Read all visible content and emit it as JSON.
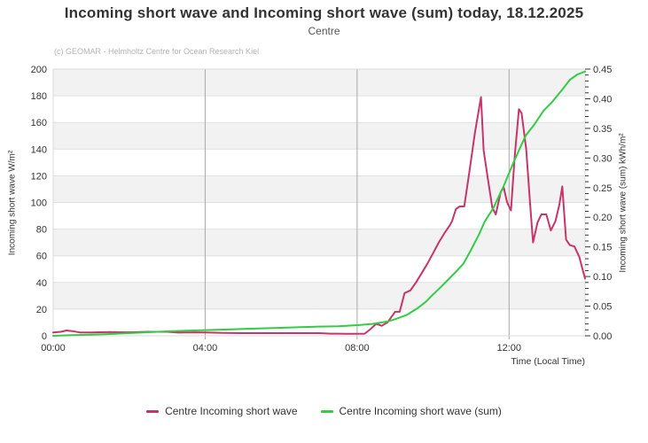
{
  "chart_data": {
    "type": "line",
    "title": "Incoming short wave and Incoming short wave (sum) today, 18.12.2025",
    "subtitle": "Centre",
    "credit": "(c) GEOMAR - Helmholtz Centre for Ocean Research Kiel",
    "x_axis": {
      "label": "Time (Local Time)",
      "range_hours": [
        0,
        14
      ],
      "ticks": [
        {
          "h": 0,
          "label": "00:00"
        },
        {
          "h": 4,
          "label": "04:00"
        },
        {
          "h": 8,
          "label": "08:00"
        },
        {
          "h": 12,
          "label": "12:00"
        }
      ]
    },
    "left_axis": {
      "label": "Incoming short wave W/m²",
      "min": 0,
      "max": 200,
      "tick_step": 20,
      "tick_labels": [
        "0",
        "20",
        "40",
        "60",
        "80",
        "100",
        "120",
        "140",
        "160",
        "180",
        "200"
      ]
    },
    "right_axis": {
      "label": "Incoming short wave (sum) kWh/m²",
      "min": 0,
      "max": 0.45,
      "tick_step": 0.05,
      "minor_tick_step": 0.01,
      "tick_labels": [
        "0.00",
        "0.05",
        "0.10",
        "0.15",
        "0.20",
        "0.25",
        "0.30",
        "0.35",
        "0.40",
        "0.45"
      ]
    },
    "style": {
      "band_fill": "#f2f2f2",
      "h_grid": "#e0e0e0",
      "v_grid": "#a8a8a8",
      "spine": "#d9d9d9",
      "tick_color": "#333333"
    },
    "series": [
      {
        "name": "Centre Incoming short wave",
        "axis": "left",
        "color": "#c4356b",
        "points": [
          [
            0,
            2.5
          ],
          [
            0.2,
            3
          ],
          [
            0.35,
            4
          ],
          [
            0.5,
            3.5
          ],
          [
            0.7,
            2.5
          ],
          [
            1,
            2.5
          ],
          [
            1.5,
            2.8
          ],
          [
            2,
            2.6
          ],
          [
            2.5,
            3
          ],
          [
            3,
            3
          ],
          [
            3.3,
            2.4
          ],
          [
            3.7,
            2.6
          ],
          [
            4,
            2.5
          ],
          [
            4.5,
            2.2
          ],
          [
            5,
            2
          ],
          [
            5.5,
            2
          ],
          [
            6,
            2
          ],
          [
            6.5,
            2
          ],
          [
            7,
            2
          ],
          [
            7.3,
            1.6
          ],
          [
            7.7,
            1.5
          ],
          [
            8,
            1.5
          ],
          [
            8.2,
            1.6
          ],
          [
            8.35,
            5
          ],
          [
            8.5,
            9
          ],
          [
            8.65,
            7.5
          ],
          [
            8.8,
            10
          ],
          [
            9,
            18
          ],
          [
            9.12,
            18
          ],
          [
            9.25,
            32
          ],
          [
            9.4,
            34
          ],
          [
            9.55,
            40
          ],
          [
            9.7,
            47
          ],
          [
            9.85,
            54
          ],
          [
            10,
            62
          ],
          [
            10.15,
            70
          ],
          [
            10.3,
            77
          ],
          [
            10.42,
            82
          ],
          [
            10.5,
            86
          ],
          [
            10.6,
            95
          ],
          [
            10.7,
            97
          ],
          [
            10.82,
            97
          ],
          [
            10.95,
            122
          ],
          [
            11.1,
            152
          ],
          [
            11.26,
            179
          ],
          [
            11.33,
            139
          ],
          [
            11.44,
            118
          ],
          [
            11.56,
            96
          ],
          [
            11.65,
            91
          ],
          [
            11.78,
            108
          ],
          [
            11.86,
            111
          ],
          [
            11.95,
            100
          ],
          [
            12.05,
            94
          ],
          [
            12.15,
            135
          ],
          [
            12.26,
            170
          ],
          [
            12.33,
            167
          ],
          [
            12.45,
            140
          ],
          [
            12.55,
            100
          ],
          [
            12.63,
            70
          ],
          [
            12.75,
            85
          ],
          [
            12.85,
            91
          ],
          [
            12.98,
            91
          ],
          [
            13.1,
            79
          ],
          [
            13.22,
            86
          ],
          [
            13.32,
            98
          ],
          [
            13.4,
            112
          ],
          [
            13.5,
            72
          ],
          [
            13.6,
            68
          ],
          [
            13.72,
            67
          ],
          [
            13.85,
            59
          ],
          [
            13.95,
            48
          ],
          [
            14,
            43
          ]
        ]
      },
      {
        "name": "Centre Incoming short wave (sum)",
        "axis": "right",
        "color": "#33cc44",
        "points": [
          [
            0,
            0
          ],
          [
            0.5,
            0.001
          ],
          [
            1,
            0.002
          ],
          [
            1.5,
            0.003
          ],
          [
            2,
            0.0045
          ],
          [
            2.5,
            0.006
          ],
          [
            3,
            0.0075
          ],
          [
            3.5,
            0.0085
          ],
          [
            4,
            0.0095
          ],
          [
            4.5,
            0.0105
          ],
          [
            5,
            0.0115
          ],
          [
            5.5,
            0.0125
          ],
          [
            6,
            0.0135
          ],
          [
            6.5,
            0.0145
          ],
          [
            7,
            0.0155
          ],
          [
            7.5,
            0.016
          ],
          [
            8,
            0.018
          ],
          [
            8.4,
            0.02
          ],
          [
            8.8,
            0.024
          ],
          [
            9,
            0.028
          ],
          [
            9.3,
            0.035
          ],
          [
            9.6,
            0.047
          ],
          [
            9.8,
            0.057
          ],
          [
            10,
            0.07
          ],
          [
            10.2,
            0.082
          ],
          [
            10.4,
            0.095
          ],
          [
            10.6,
            0.108
          ],
          [
            10.8,
            0.122
          ],
          [
            11,
            0.145
          ],
          [
            11.2,
            0.17
          ],
          [
            11.36,
            0.193
          ],
          [
            11.58,
            0.215
          ],
          [
            11.86,
            0.253
          ],
          [
            12.1,
            0.29
          ],
          [
            12.26,
            0.313
          ],
          [
            12.44,
            0.338
          ],
          [
            12.67,
            0.357
          ],
          [
            12.91,
            0.38
          ],
          [
            13.14,
            0.395
          ],
          [
            13.42,
            0.417
          ],
          [
            13.6,
            0.432
          ],
          [
            13.8,
            0.441
          ],
          [
            14,
            0.446
          ]
        ]
      }
    ]
  }
}
